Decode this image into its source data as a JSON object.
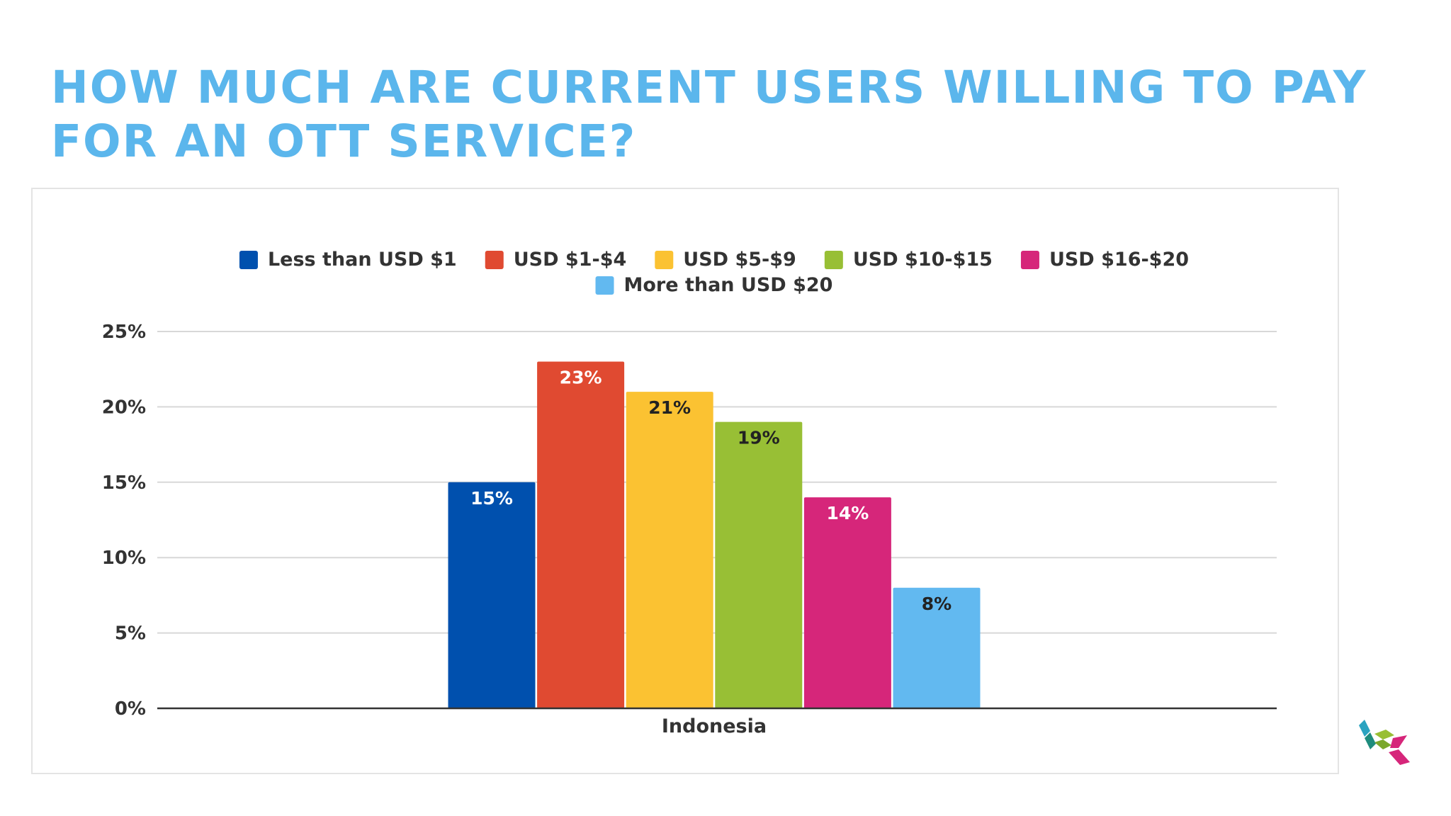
{
  "slide": {
    "title": "HOW MUCH ARE CURRENT USERS WILLING TO PAY FOR AN OTT SERVICE?"
  },
  "chart_data": {
    "type": "bar",
    "title": "",
    "xlabel": "",
    "ylabel": "",
    "categories": [
      "Indonesia"
    ],
    "series": [
      {
        "name": "Less than USD $1",
        "values": [
          15
        ],
        "color": "#0050ae",
        "label": "15%",
        "label_color": "#ffffff"
      },
      {
        "name": "USD $1-$4",
        "values": [
          23
        ],
        "color": "#e04a31",
        "label": "23%",
        "label_color": "#ffffff"
      },
      {
        "name": "USD $5-$9",
        "values": [
          21
        ],
        "color": "#fbc232",
        "label": "21%",
        "label_color": "#222222"
      },
      {
        "name": "USD $10-$15",
        "values": [
          19
        ],
        "color": "#98bf35",
        "label": "19%",
        "label_color": "#222222"
      },
      {
        "name": "USD $16-$20",
        "values": [
          14
        ],
        "color": "#d6267a",
        "label": "14%",
        "label_color": "#ffffff"
      },
      {
        "name": "More than USD $20",
        "values": [
          8
        ],
        "color": "#62b9f0",
        "label": "8%",
        "label_color": "#222222"
      }
    ],
    "ylim": [
      0,
      25
    ],
    "y_ticks": [
      {
        "value": 0,
        "label": "0%"
      },
      {
        "value": 5,
        "label": "5%"
      },
      {
        "value": 10,
        "label": "10%"
      },
      {
        "value": 15,
        "label": "15%"
      },
      {
        "value": 20,
        "label": "20%"
      },
      {
        "value": 25,
        "label": "25%"
      }
    ],
    "grid": true,
    "legend_position": "top"
  },
  "colors": {
    "title": "#5bb6ec",
    "gridline": "#d8d8d8",
    "axis": "#333333"
  },
  "logo": {
    "icon": "company-logo-icon"
  }
}
